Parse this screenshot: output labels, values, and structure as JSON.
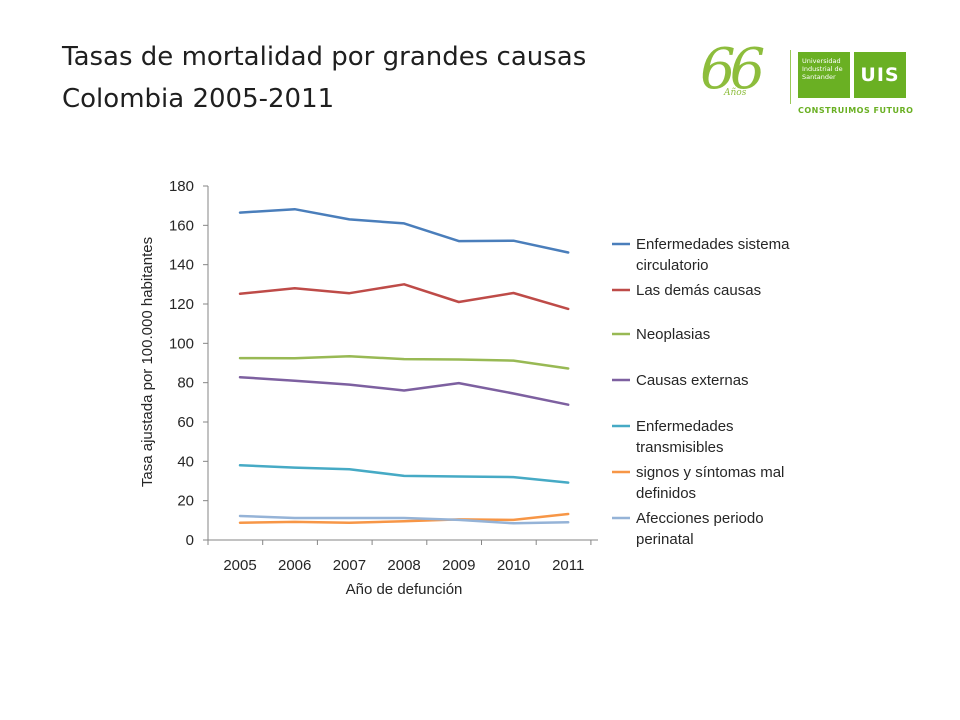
{
  "slide": {
    "title_line1": "Tasas de mortalidad por grandes causas",
    "title_line2": "Colombia  2005-2011"
  },
  "logo": {
    "anniversary_number": "66",
    "anniversary_word": "Años",
    "university_line1": "Universidad",
    "university_line2": "Industrial de",
    "university_line3": "Santander",
    "acronym": "UIS",
    "slogan": "CONSTRUIMOS FUTURO",
    "color": "#6ab023"
  },
  "chart_data": {
    "type": "line",
    "title": "",
    "xlabel": "Año de defunción",
    "ylabel": "Tasa ajustada por 100.000 habitantes",
    "x": [
      "2005",
      "2006",
      "2007",
      "2008",
      "2009",
      "2010",
      "2011"
    ],
    "ylim": [
      0,
      180
    ],
    "yticks": [
      0,
      20,
      40,
      60,
      80,
      100,
      120,
      140,
      160,
      180
    ],
    "grid": false,
    "legend_position": "right",
    "series": [
      {
        "name_lines": [
          "Enfermedades sistema",
          "circulatorio"
        ],
        "color": "#4a7ebb",
        "values": [
          166.5,
          168.2,
          163.0,
          161.0,
          152.0,
          152.2,
          146.2
        ]
      },
      {
        "name_lines": [
          "Las demás causas"
        ],
        "color": "#be4b48",
        "values": [
          125.2,
          128.0,
          125.5,
          130.0,
          121.0,
          125.6,
          117.5
        ]
      },
      {
        "name_lines": [
          "Neoplasias"
        ],
        "color": "#98b954",
        "values": [
          92.5,
          92.4,
          93.4,
          92.0,
          91.8,
          91.2,
          87.2
        ]
      },
      {
        "name_lines": [
          "Causas externas"
        ],
        "color": "#7d60a0",
        "values": [
          82.8,
          81.0,
          79.0,
          76.0,
          79.8,
          74.5,
          68.8
        ]
      },
      {
        "name_lines": [
          "Enfermedades",
          "transmisibles"
        ],
        "color": "#46aac5",
        "values": [
          38.0,
          36.8,
          36.0,
          32.6,
          32.3,
          32.0,
          29.2
        ]
      },
      {
        "name_lines": [
          "signos y síntomas mal",
          "definidos"
        ],
        "color": "#f79646",
        "values": [
          8.8,
          9.2,
          8.8,
          9.5,
          10.5,
          10.2,
          13.2
        ]
      },
      {
        "name_lines": [
          "Afecciones periodo",
          "perinatal"
        ],
        "color": "#95b3d7",
        "values": [
          12.2,
          11.2,
          11.2,
          11.2,
          10.2,
          8.5,
          9.0
        ]
      }
    ]
  }
}
